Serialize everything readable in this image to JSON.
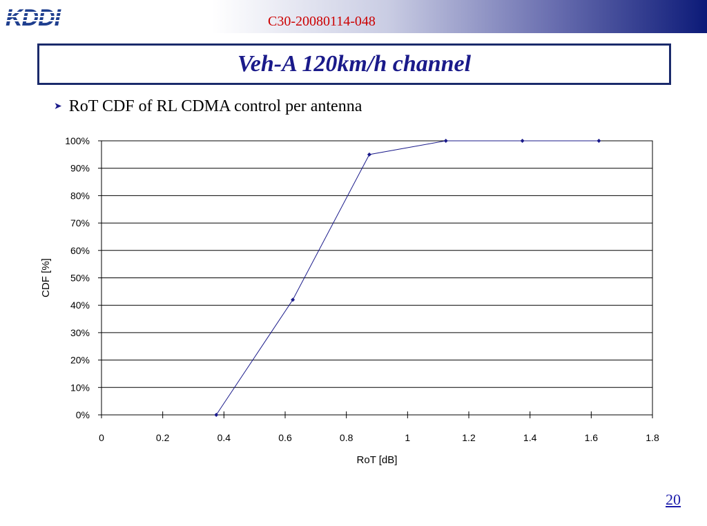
{
  "header": {
    "logo_text": "KDDI",
    "doc_id": "C30-20080114-048"
  },
  "slide": {
    "title": "Veh-A 120km/h channel",
    "bullet": "RoT CDF of RL CDMA control per antenna",
    "page_number": "20"
  },
  "colors": {
    "title": "#1a1a8a",
    "doc_id": "#cc0000",
    "series": "#1a1a8a",
    "header_dark": "#0c1a78"
  },
  "chart_data": {
    "type": "line",
    "xlabel": "RoT [dB]",
    "ylabel": "CDF [%]",
    "xlim": [
      0,
      1.8
    ],
    "ylim": [
      0,
      100
    ],
    "x_ticks": [
      "0",
      "0.2",
      "0.4",
      "0.6",
      "0.8",
      "1",
      "1.2",
      "1.4",
      "1.6",
      "1.8"
    ],
    "y_ticks": [
      "0%",
      "10%",
      "20%",
      "30%",
      "40%",
      "50%",
      "60%",
      "70%",
      "80%",
      "90%",
      "100%"
    ],
    "grid": "horizontal",
    "series": [
      {
        "x": [
          0.375,
          0.625,
          0.875,
          1.125,
          1.375,
          1.625
        ],
        "y": [
          0,
          42,
          95,
          100,
          100,
          100
        ]
      }
    ]
  }
}
